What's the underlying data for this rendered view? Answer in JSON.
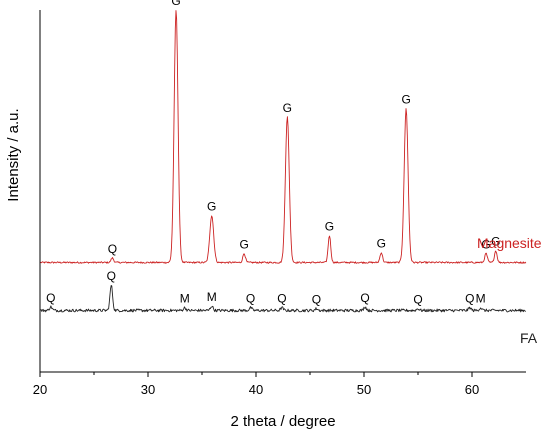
{
  "chart_data": {
    "type": "line",
    "xlabel": "2 theta / degree",
    "ylabel": "Intensity / a.u.",
    "xlim": [
      20,
      65
    ],
    "x_ticks": [
      "20",
      "30",
      "40",
      "50",
      "60"
    ],
    "grid": false,
    "colors": {
      "Magnesite": "#cc2222",
      "FA": "#222222"
    },
    "series": [
      {
        "name": "Magnesite",
        "baseline": 121,
        "noise": 0.9,
        "peaks": [
          {
            "x": 26.7,
            "y": 126,
            "label": "Q"
          },
          {
            "x": 32.6,
            "y": 400,
            "label": "G"
          },
          {
            "x": 35.9,
            "y": 173,
            "label": "G"
          },
          {
            "x": 38.9,
            "y": 131,
            "label": "G"
          },
          {
            "x": 42.9,
            "y": 282,
            "label": "G"
          },
          {
            "x": 46.8,
            "y": 151,
            "label": "G"
          },
          {
            "x": 51.6,
            "y": 132,
            "label": "G"
          },
          {
            "x": 53.9,
            "y": 291,
            "label": "G"
          },
          {
            "x": 61.3,
            "y": 131,
            "label": "G"
          },
          {
            "x": 62.2,
            "y": 134,
            "label": "G"
          }
        ]
      },
      {
        "name": "FA",
        "baseline": 68,
        "noise": 1.6,
        "peaks": [
          {
            "x": 21.0,
            "y": 72,
            "label": "Q"
          },
          {
            "x": 26.6,
            "y": 96,
            "label": "Q"
          },
          {
            "x": 33.4,
            "y": 71,
            "label": "M"
          },
          {
            "x": 35.9,
            "y": 73,
            "label": "M"
          },
          {
            "x": 39.5,
            "y": 71,
            "label": "Q"
          },
          {
            "x": 42.4,
            "y": 71,
            "label": "Q"
          },
          {
            "x": 45.6,
            "y": 70,
            "label": "Q"
          },
          {
            "x": 50.1,
            "y": 72,
            "label": "Q"
          },
          {
            "x": 55.0,
            "y": 70,
            "label": "Q"
          },
          {
            "x": 59.8,
            "y": 71,
            "label": "Q"
          },
          {
            "x": 60.8,
            "y": 71,
            "label": "M"
          }
        ]
      }
    ]
  }
}
